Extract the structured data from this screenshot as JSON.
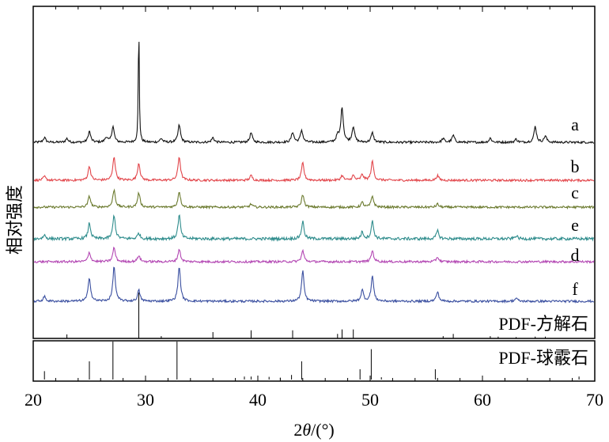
{
  "chart_data": {
    "type": "line",
    "title": "",
    "xlabel": "2θ/(°)",
    "xlabel_parts": [
      "2",
      "θ",
      "/(°)"
    ],
    "ylabel": "相对强度",
    "xlim": [
      20,
      70
    ],
    "xticks": [
      20,
      30,
      40,
      50,
      60,
      70
    ],
    "series": [
      {
        "name": "a",
        "color": "#111111",
        "noise": 0.35,
        "peaks": [
          [
            21.0,
            1.5
          ],
          [
            23.0,
            1.2
          ],
          [
            25.0,
            3.5
          ],
          [
            26.5,
            1.6
          ],
          [
            27.1,
            5.0
          ],
          [
            29.4,
            38
          ],
          [
            31.4,
            1.2
          ],
          [
            33.0,
            5.5
          ],
          [
            36.0,
            1.5
          ],
          [
            39.4,
            3.0
          ],
          [
            43.1,
            3.2
          ],
          [
            43.9,
            3.8
          ],
          [
            47.1,
            2.0
          ],
          [
            47.5,
            11.0
          ],
          [
            48.5,
            5.0
          ],
          [
            50.2,
            3.0
          ],
          [
            56.5,
            1.2
          ],
          [
            57.4,
            2.2
          ],
          [
            60.7,
            1.3
          ],
          [
            63.0,
            1.0
          ],
          [
            64.7,
            5.0
          ],
          [
            65.6,
            2.0
          ]
        ]
      },
      {
        "name": "b",
        "color": "#e2454a",
        "noise": 0.35,
        "peaks": [
          [
            21.0,
            1.2
          ],
          [
            25.0,
            4.5
          ],
          [
            27.2,
            7.5
          ],
          [
            29.4,
            5.5
          ],
          [
            33.0,
            7.5
          ],
          [
            39.4,
            1.5
          ],
          [
            44.0,
            5.5
          ],
          [
            47.5,
            1.5
          ],
          [
            48.5,
            1.5
          ],
          [
            49.3,
            1.8
          ],
          [
            50.2,
            6.0
          ],
          [
            56.0,
            1.5
          ]
        ]
      },
      {
        "name": "c",
        "color": "#6b7a2e",
        "noise": 0.35,
        "peaks": [
          [
            25.0,
            3.5
          ],
          [
            27.2,
            5.5
          ],
          [
            29.4,
            4.5
          ],
          [
            33.0,
            5.0
          ],
          [
            39.4,
            1.0
          ],
          [
            44.0,
            4.0
          ],
          [
            49.3,
            1.5
          ],
          [
            50.2,
            3.5
          ],
          [
            56.0,
            1.0
          ]
        ]
      },
      {
        "name": "e",
        "color": "#2e8c8c",
        "noise": 0.45,
        "peaks": [
          [
            21.0,
            1.2
          ],
          [
            25.0,
            5.0
          ],
          [
            27.2,
            7.5
          ],
          [
            29.4,
            1.8
          ],
          [
            33.0,
            7.5
          ],
          [
            44.0,
            5.5
          ],
          [
            49.3,
            2.2
          ],
          [
            50.2,
            5.5
          ],
          [
            56.0,
            2.5
          ],
          [
            63.0,
            1.0
          ]
        ]
      },
      {
        "name": "d",
        "color": "#b347b3",
        "noise": 0.35,
        "peaks": [
          [
            25.0,
            3.0
          ],
          [
            27.2,
            4.5
          ],
          [
            29.4,
            2.0
          ],
          [
            33.0,
            4.0
          ],
          [
            44.0,
            3.5
          ],
          [
            50.2,
            3.5
          ],
          [
            56.0,
            1.5
          ]
        ]
      },
      {
        "name": "f",
        "color": "#3a4fa0",
        "noise": 0.35,
        "peaks": [
          [
            21.0,
            1.5
          ],
          [
            25.0,
            7.5
          ],
          [
            27.2,
            11.0
          ],
          [
            29.4,
            3.5
          ],
          [
            33.0,
            11.0
          ],
          [
            44.0,
            9.5
          ],
          [
            49.3,
            3.5
          ],
          [
            50.2,
            8.0
          ],
          [
            56.0,
            3.0
          ],
          [
            63.0,
            1.0
          ]
        ]
      }
    ],
    "references": [
      {
        "name": "PDF-方解石",
        "lines": [
          [
            23.0,
            0.09
          ],
          [
            29.4,
            1.0
          ],
          [
            31.4,
            0.05
          ],
          [
            36.0,
            0.14
          ],
          [
            39.4,
            0.18
          ],
          [
            43.1,
            0.18
          ],
          [
            47.1,
            0.1
          ],
          [
            47.5,
            0.2
          ],
          [
            48.5,
            0.2
          ],
          [
            56.5,
            0.05
          ],
          [
            57.4,
            0.1
          ],
          [
            60.7,
            0.05
          ],
          [
            61.4,
            0.04
          ],
          [
            63.0,
            0.03
          ],
          [
            64.7,
            0.04
          ],
          [
            65.6,
            0.04
          ]
        ]
      },
      {
        "name": "PDF-球霰石",
        "lines": [
          [
            21.0,
            0.22
          ],
          [
            25.0,
            0.48
          ],
          [
            27.1,
            1.0
          ],
          [
            30.0,
            0.06
          ],
          [
            32.8,
            1.0
          ],
          [
            38.8,
            0.08
          ],
          [
            39.4,
            0.08
          ],
          [
            40.0,
            0.08
          ],
          [
            41.0,
            0.07
          ],
          [
            42.0,
            0.05
          ],
          [
            43.0,
            0.12
          ],
          [
            43.9,
            0.48
          ],
          [
            49.1,
            0.27
          ],
          [
            50.1,
            0.8
          ],
          [
            51.0,
            0.06
          ],
          [
            55.8,
            0.27
          ],
          [
            60.0,
            0.05
          ],
          [
            62.0,
            0.04
          ],
          [
            68.6,
            0.08
          ]
        ]
      }
    ]
  }
}
